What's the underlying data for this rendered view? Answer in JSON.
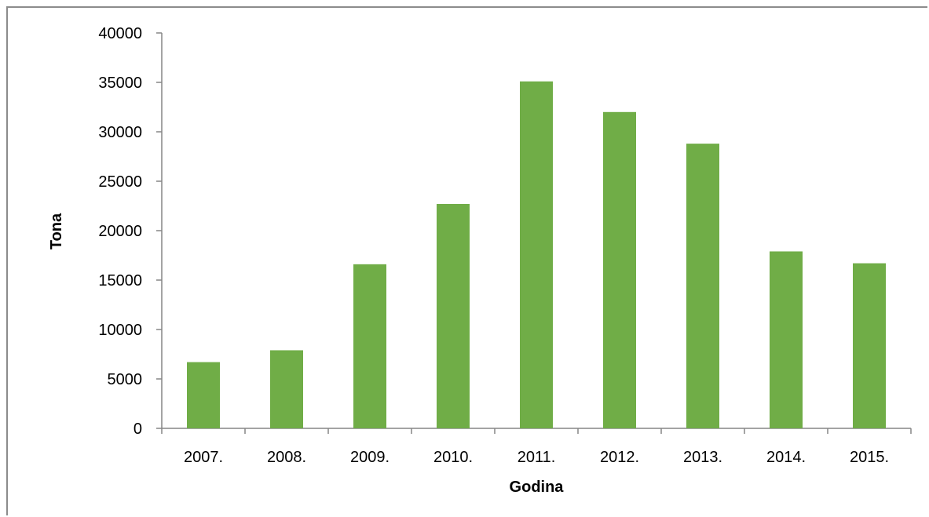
{
  "chart_data": {
    "type": "bar",
    "categories": [
      "2007.",
      "2008.",
      "2009.",
      "2010.",
      "2011.",
      "2012.",
      "2013.",
      "2014.",
      "2015."
    ],
    "values": [
      6700,
      7900,
      16600,
      22700,
      35100,
      32000,
      28800,
      17900,
      16700
    ],
    "title": "",
    "xlabel": "Godina",
    "ylabel": "Tona",
    "ylim": [
      0,
      40000
    ],
    "yticks": [
      0,
      5000,
      10000,
      15000,
      20000,
      25000,
      30000,
      35000,
      40000
    ],
    "grid": false,
    "legend": "none",
    "bar_color": "#70ad47",
    "axis_color": "#868686"
  }
}
